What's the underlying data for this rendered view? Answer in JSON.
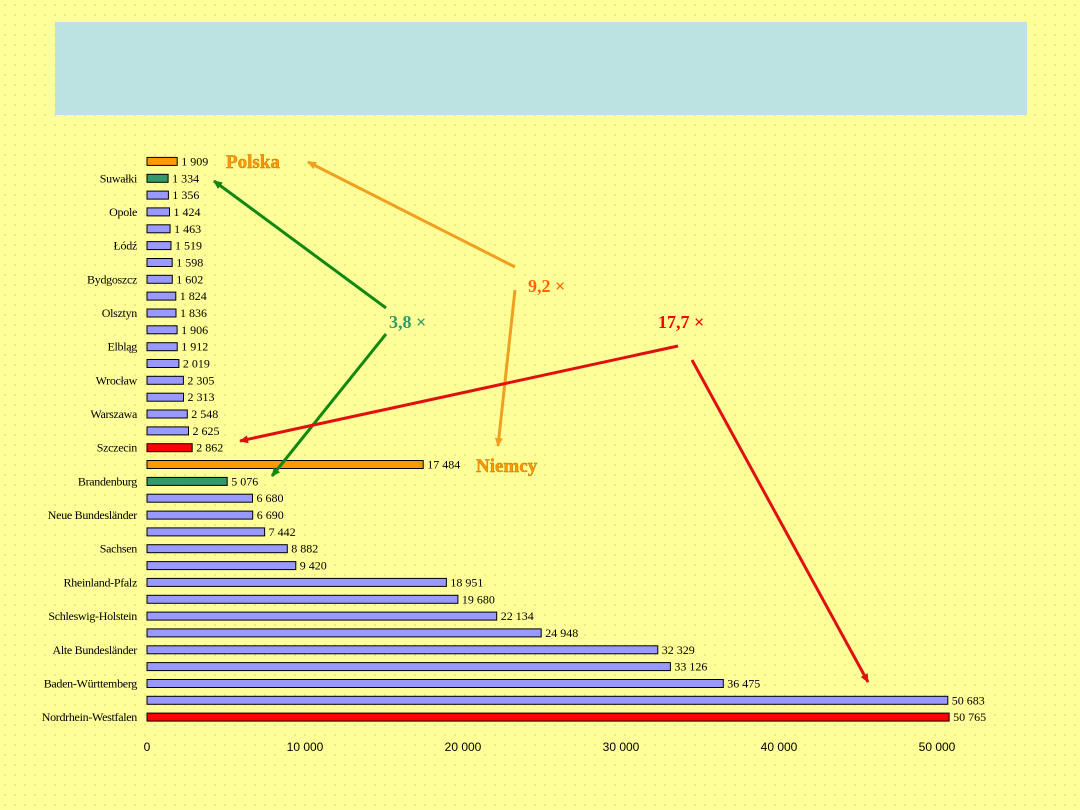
{
  "title": "",
  "chart_data": {
    "type": "bar",
    "orientation": "horizontal",
    "title": "",
    "xlabel": "",
    "ylabel": "",
    "xlim": [
      0,
      50000
    ],
    "grid": false,
    "x_ticks": [
      0,
      10000,
      20000,
      30000,
      40000,
      50000
    ],
    "x_tick_labels": [
      "0",
      "10 000",
      "20 000",
      "30 000",
      "40 000",
      "50 000"
    ],
    "categories": [
      "",
      "Suwałki",
      "",
      "Opole",
      "",
      "Łódź",
      "",
      "Bydgoszcz",
      "",
      "Olsztyn",
      "",
      "Elbląg",
      "",
      "Wrocław",
      "",
      "Warszawa",
      "",
      "Szczecin",
      "",
      "Brandenburg",
      "",
      "Neue Bundesländer",
      "",
      "Sachsen",
      "",
      "Rheinland-Pfalz",
      "",
      "Schleswig-Holstein",
      "",
      "Alte Bundesländer",
      "",
      "Baden-Württemberg",
      "",
      "Nordrhein-Westfalen"
    ],
    "values": [
      1909,
      1334,
      1356,
      1424,
      1463,
      1519,
      1598,
      1602,
      1824,
      1836,
      1906,
      1912,
      2019,
      2305,
      2313,
      2548,
      2625,
      2862,
      17484,
      5076,
      6680,
      6690,
      7442,
      8882,
      9420,
      18951,
      19680,
      22134,
      24948,
      32329,
      33126,
      36475,
      50683,
      50765
    ],
    "value_labels": [
      "1 909",
      "1 334",
      "1 356",
      "1 424",
      "1 463",
      "1 519",
      "1 598",
      "1 602",
      "1 824",
      "1 836",
      "1 906",
      "1 912",
      "2 019",
      "2 305",
      "2 313",
      "2 548",
      "2 625",
      "2 862",
      "17 484",
      "5 076",
      "6 680",
      "6 690",
      "7 442",
      "8 882",
      "9 420",
      "18 951",
      "19 680",
      "22 134",
      "24 948",
      "32 329",
      "33 126",
      "36 475",
      "50 683",
      "50 765"
    ],
    "bar_colors": [
      "#ff9900",
      "#339966",
      "#9999ff",
      "#9999ff",
      "#9999ff",
      "#9999ff",
      "#9999ff",
      "#9999ff",
      "#9999ff",
      "#9999ff",
      "#9999ff",
      "#9999ff",
      "#9999ff",
      "#9999ff",
      "#9999ff",
      "#9999ff",
      "#9999ff",
      "#ff0000",
      "#ff9900",
      "#339966",
      "#9999ff",
      "#9999ff",
      "#9999ff",
      "#9999ff",
      "#9999ff",
      "#9999ff",
      "#9999ff",
      "#9999ff",
      "#9999ff",
      "#9999ff",
      "#9999ff",
      "#9999ff",
      "#9999ff",
      "#ff0000"
    ],
    "annotations": {
      "polska": {
        "text": "Polska",
        "color": "#ff9900"
      },
      "niemcy": {
        "text": "Niemcy",
        "color": "#ff9900"
      },
      "ratio_orange": {
        "text": "9,2 ×",
        "color": "#ff6600"
      },
      "ratio_green": {
        "text": "3,8 ×",
        "color": "#339966"
      },
      "ratio_red": {
        "text": "17,7 ×",
        "color": "#ff0000"
      }
    },
    "arrow_colors": {
      "orange": "#f0a020",
      "green": "#118811",
      "red": "#e01010"
    }
  }
}
